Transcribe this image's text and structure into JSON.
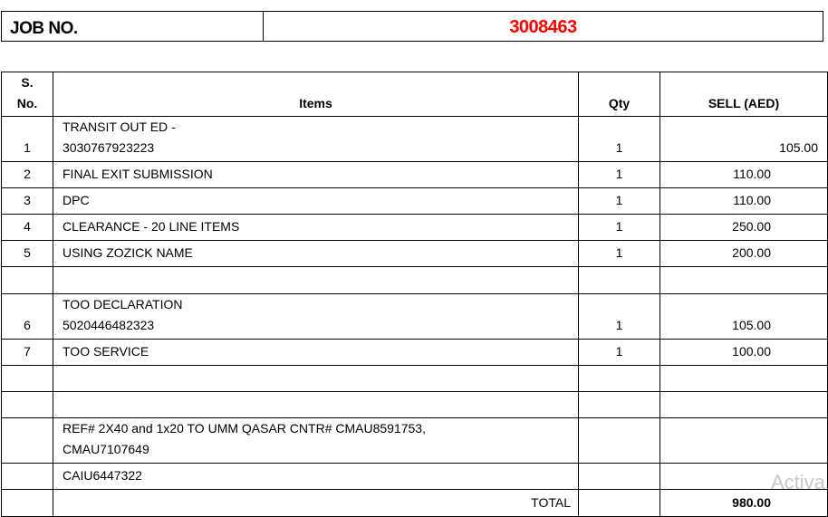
{
  "job": {
    "label": "JOB NO.",
    "number": "3008463",
    "number_color": "#ff0000"
  },
  "table": {
    "headers": {
      "sno_line1": "S.",
      "sno_line2": "No.",
      "items": "Items",
      "qty": "Qty",
      "sell": "SELL  (AED)"
    },
    "rows": [
      {
        "sno": "1",
        "item_line1": "TRANSIT OUT ED -",
        "item_line2": "3030767923223",
        "qty": "1",
        "sell": "105.00"
      },
      {
        "sno": "2",
        "item_line1": "FINAL EXIT SUBMISSION",
        "qty": "1",
        "sell": "110.00"
      },
      {
        "sno": "3",
        "item_line1": "DPC",
        "qty": "1",
        "sell": "110.00"
      },
      {
        "sno": "4",
        "item_line1": "CLEARANCE - 20 LINE ITEMS",
        "qty": "1",
        "sell": "250.00"
      },
      {
        "sno": "5",
        "item_line1": "USING ZOZICK NAME",
        "qty": "1",
        "sell": "200.00"
      },
      {
        "sno": "6",
        "item_line1": "TOO DECLARATION",
        "item_line2": "5020446482323",
        "qty": "1",
        "sell": "105.00"
      },
      {
        "sno": "7",
        "item_line1": "TOO SERVICE",
        "qty": "1",
        "sell": "100.00"
      }
    ],
    "notes": {
      "ref_line1": "REF# 2X40 and 1x20 TO UMM QASAR CNTR# CMAU8591753,",
      "ref_line2": "CMAU7107649",
      "container": "CAIU6447322"
    },
    "total_label": "TOTAL",
    "total_value": "980.00"
  },
  "watermark": "Activa"
}
